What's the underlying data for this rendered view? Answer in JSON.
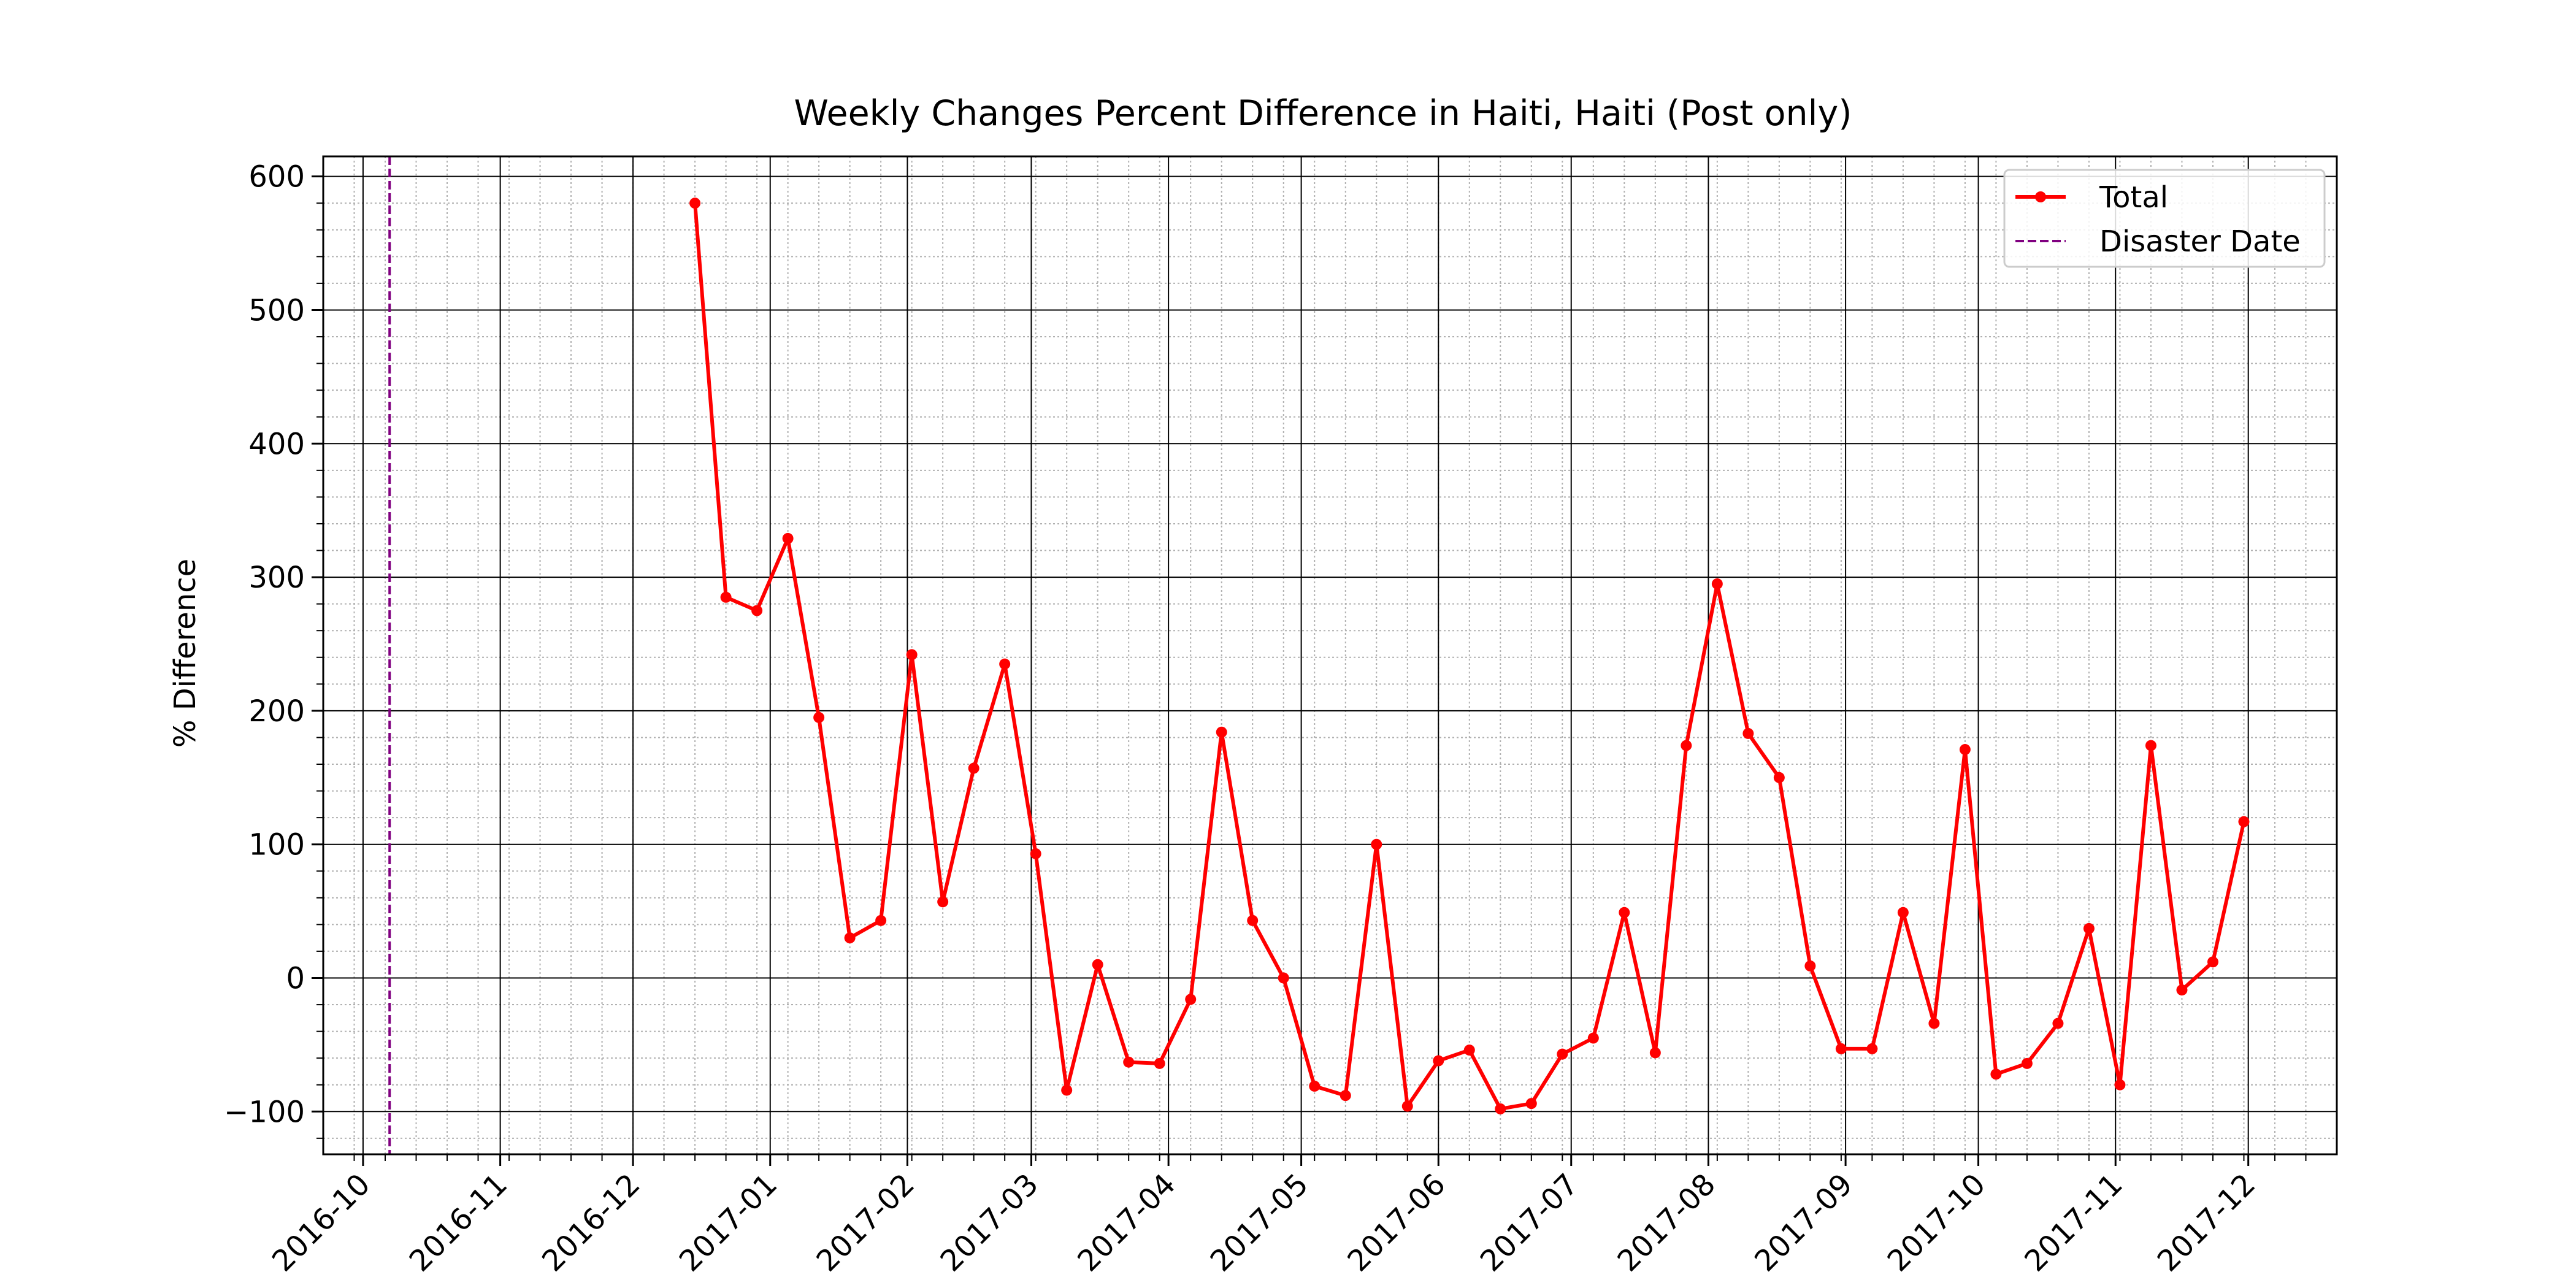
{
  "chart_data": {
    "type": "line",
    "title": "Weekly Changes Percent Difference in Haiti, Haiti (Post only)",
    "xlabel": "",
    "ylabel": "% Difference",
    "x_range": [
      "2016-09-22",
      "2017-12-21"
    ],
    "ylim": [
      -132,
      615
    ],
    "y_ticks": [
      -100,
      0,
      100,
      200,
      300,
      400,
      500,
      600
    ],
    "y_tick_labels": [
      "−100",
      "0",
      "100",
      "200",
      "300",
      "400",
      "500",
      "600"
    ],
    "x_ticks": [
      "2016-10-01",
      "2016-11-01",
      "2016-12-01",
      "2017-01-01",
      "2017-02-01",
      "2017-03-01",
      "2017-04-01",
      "2017-05-01",
      "2017-06-01",
      "2017-07-01",
      "2017-08-01",
      "2017-09-01",
      "2017-10-01",
      "2017-11-01",
      "2017-12-01"
    ],
    "x_tick_labels": [
      "2016-10",
      "2016-11",
      "2016-12",
      "2017-01",
      "2017-02",
      "2017-03",
      "2017-04",
      "2017-05",
      "2017-06",
      "2017-07",
      "2017-08",
      "2017-09",
      "2017-10",
      "2017-11",
      "2017-12"
    ],
    "grid": true,
    "minor_grid": true,
    "legend_position": "top-right",
    "series": [
      {
        "name": "Total",
        "color": "#ff0000",
        "marker": "circle",
        "x": [
          "2016-12-15",
          "2016-12-22",
          "2016-12-29",
          "2017-01-05",
          "2017-01-12",
          "2017-01-19",
          "2017-01-26",
          "2017-02-02",
          "2017-02-09",
          "2017-02-16",
          "2017-02-23",
          "2017-03-02",
          "2017-03-09",
          "2017-03-16",
          "2017-03-23",
          "2017-03-30",
          "2017-04-06",
          "2017-04-13",
          "2017-04-20",
          "2017-04-27",
          "2017-05-04",
          "2017-05-11",
          "2017-05-18",
          "2017-05-25",
          "2017-06-01",
          "2017-06-08",
          "2017-06-15",
          "2017-06-22",
          "2017-06-29",
          "2017-07-06",
          "2017-07-13",
          "2017-07-20",
          "2017-07-27",
          "2017-08-03",
          "2017-08-10",
          "2017-08-17",
          "2017-08-24",
          "2017-08-31",
          "2017-09-07",
          "2017-09-14",
          "2017-09-21",
          "2017-09-28",
          "2017-10-05",
          "2017-10-12",
          "2017-10-19",
          "2017-10-26",
          "2017-11-02",
          "2017-11-09",
          "2017-11-16",
          "2017-11-23",
          "2017-11-30"
        ],
        "y": [
          580,
          285,
          275,
          329,
          195,
          30,
          43,
          242,
          57,
          157,
          235,
          93,
          -84,
          10,
          -63,
          -64,
          -16,
          184,
          43,
          0,
          -81,
          -88,
          100,
          -96,
          -62,
          -54,
          -98,
          -94,
          -57,
          -45,
          49,
          -56,
          174,
          295,
          183,
          150,
          9,
          -53,
          -53,
          49,
          -34,
          171,
          -72,
          -64,
          -34,
          37,
          -80,
          174,
          -9,
          12,
          117
        ]
      },
      {
        "name": "Disaster Date",
        "color": "#800080",
        "style": "dashed-vertical",
        "x": "2016-10-07"
      }
    ]
  }
}
